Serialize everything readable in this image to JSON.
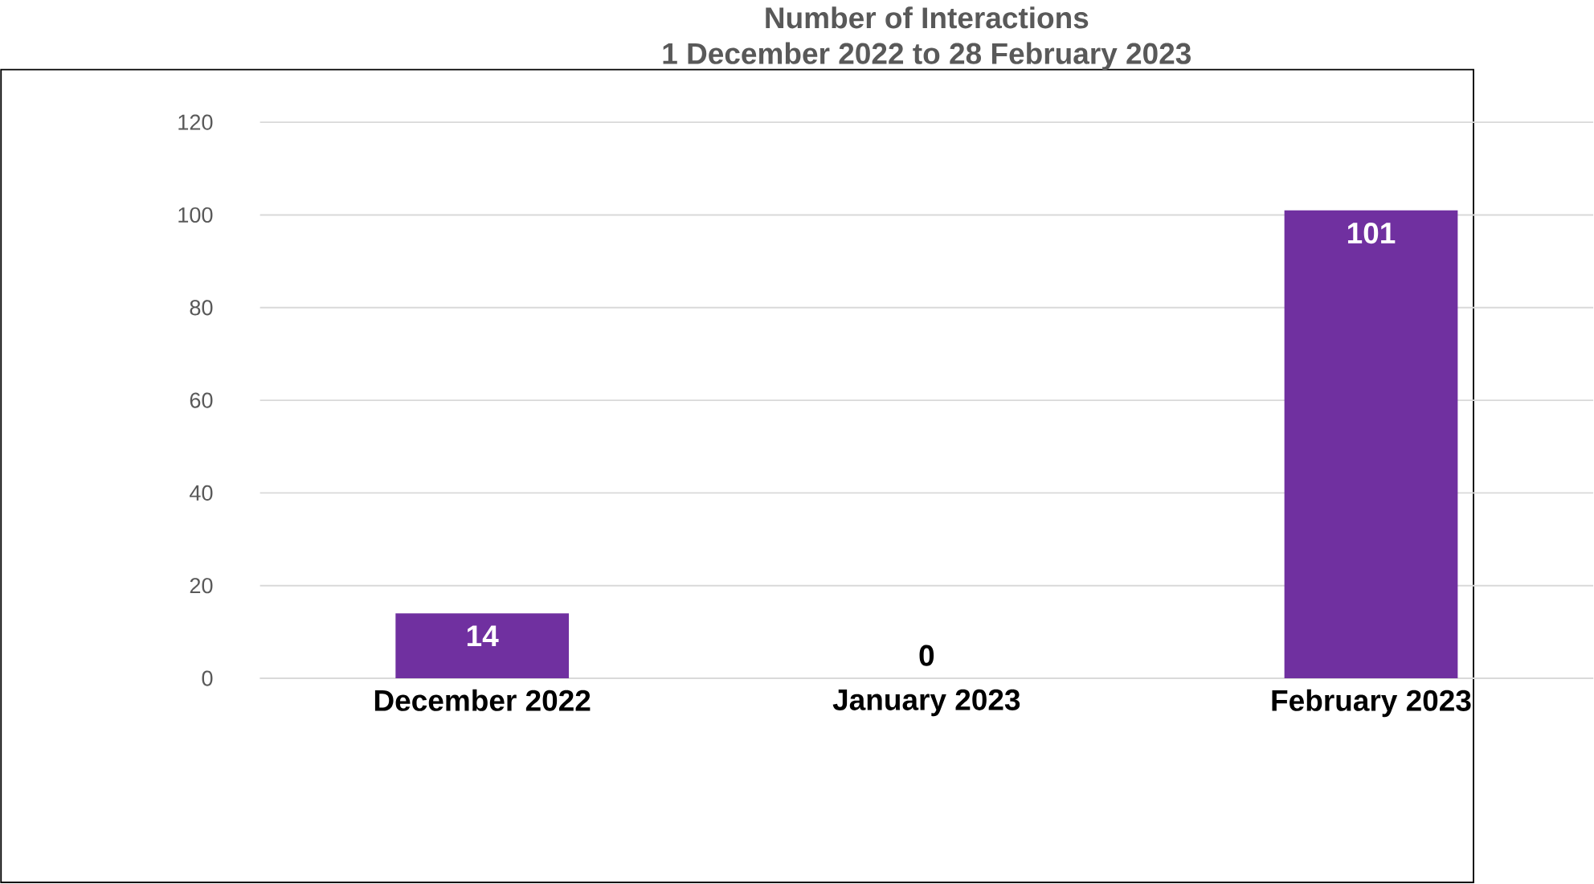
{
  "chart_data": {
    "type": "bar",
    "title": "Number of Interactions",
    "subtitle": "1 December 2022 to 28 February 2023",
    "categories": [
      "December 2022",
      "January 2023",
      "February 2023"
    ],
    "values": [
      14,
      0,
      101
    ],
    "color": "#7030a0",
    "ylim": [
      0,
      120
    ],
    "yticks": [
      0,
      20,
      40,
      60,
      80,
      100,
      120
    ],
    "grid": "y",
    "data_labels": true
  }
}
